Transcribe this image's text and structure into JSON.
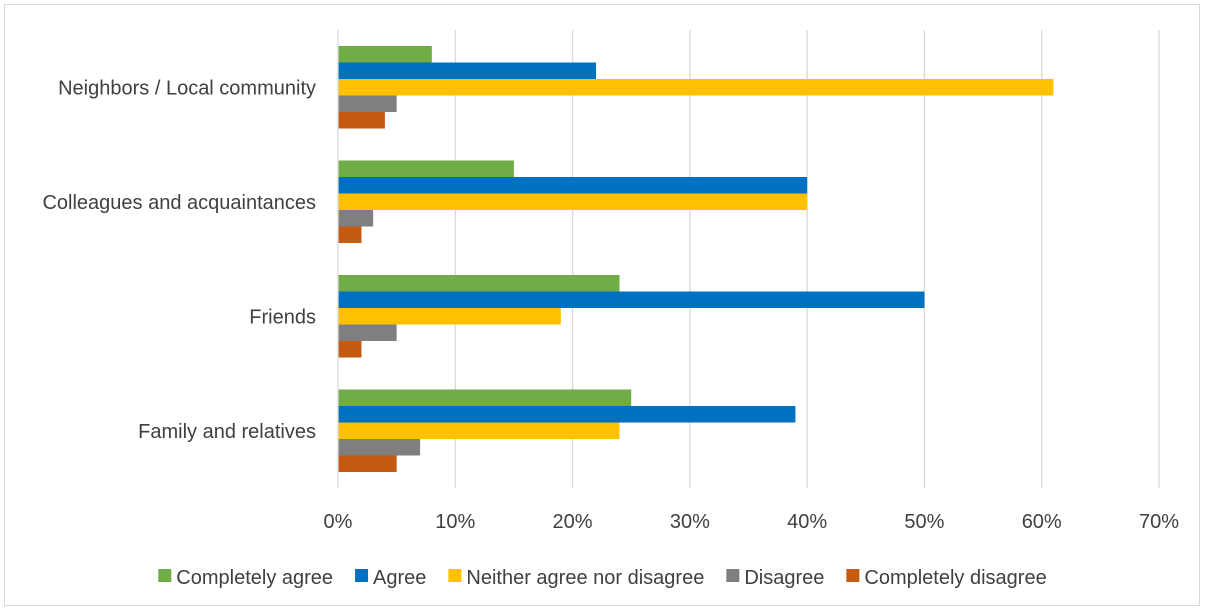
{
  "chart_data": {
    "type": "bar",
    "orientation": "horizontal",
    "title": "",
    "xlabel": "",
    "ylabel": "",
    "categories": [
      "Family and relatives",
      "Friends",
      "Colleagues and acquaintances",
      "Neighbors / Local community"
    ],
    "x_ticks": [
      "0%",
      "10%",
      "20%",
      "30%",
      "40%",
      "50%",
      "60%",
      "70%"
    ],
    "xlim": [
      0,
      70
    ],
    "unit": "%",
    "grid": true,
    "legend_position": "bottom",
    "series": [
      {
        "name": "Completely agree",
        "color": "#70AD47",
        "values": [
          25,
          24,
          15,
          8
        ]
      },
      {
        "name": "Agree",
        "color": "#0070C0",
        "values": [
          39,
          50,
          40,
          22
        ]
      },
      {
        "name": "Neither agree nor disagree",
        "color": "#FFC000",
        "values": [
          24,
          19,
          40,
          61
        ]
      },
      {
        "name": "Disagree",
        "color": "#7F7F7F",
        "values": [
          7,
          5,
          3,
          5
        ]
      },
      {
        "name": "Completely disagree",
        "color": "#C55A11",
        "values": [
          5,
          2,
          2,
          4
        ]
      }
    ]
  }
}
